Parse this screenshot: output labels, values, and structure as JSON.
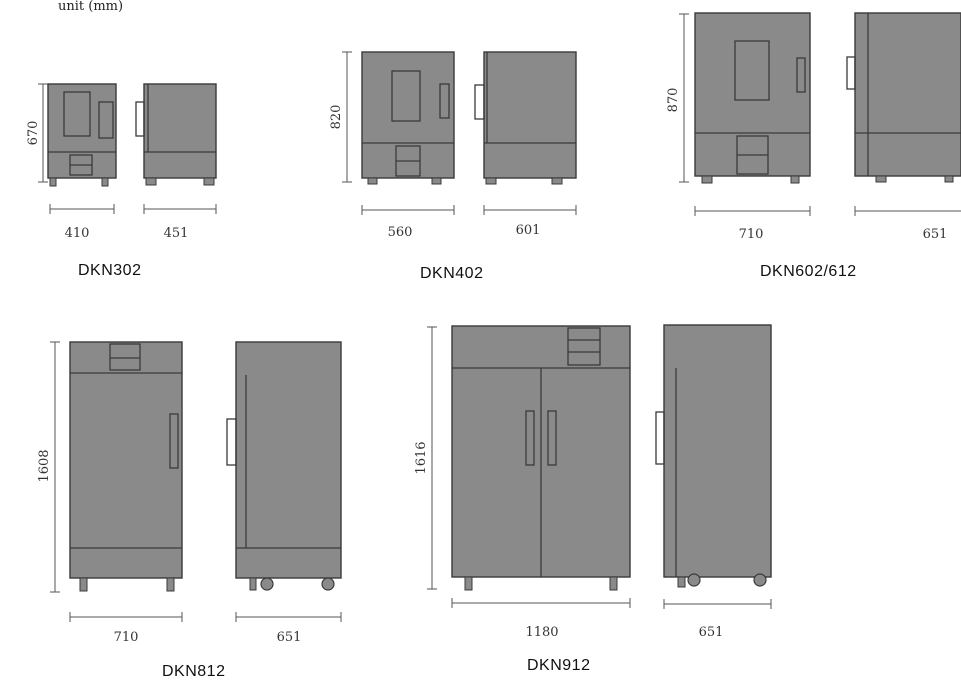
{
  "top_note": "unit (mm)",
  "colors": {
    "body": "#8a8a8a",
    "outline": "#3a3a3a",
    "dimension": "#555555"
  },
  "models": {
    "dkn302": {
      "name": "DKN302",
      "height": "670",
      "width_front": "410",
      "depth_side": "451"
    },
    "dkn402": {
      "name": "DKN402",
      "height": "820",
      "width_front": "560",
      "depth_side": "601"
    },
    "dkn602": {
      "name": "DKN602/612",
      "height": "870",
      "width_front": "710",
      "depth_side": "651"
    },
    "dkn812": {
      "name": "DKN812",
      "height": "1608",
      "width_front": "710",
      "depth_side": "651"
    },
    "dkn912": {
      "name": "DKN912",
      "height": "1616",
      "width_front": "1180",
      "depth_side": "651"
    }
  }
}
